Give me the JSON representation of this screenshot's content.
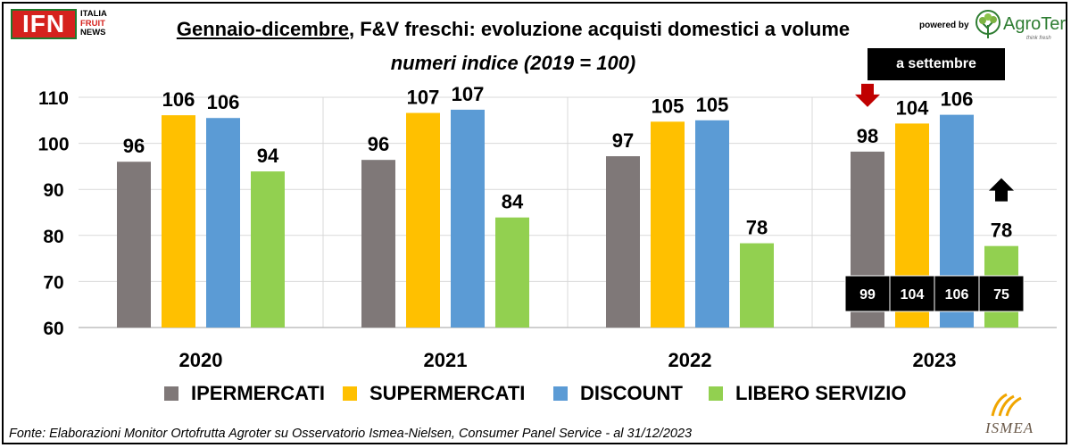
{
  "header": {
    "title_underlined": "Gennaio-dicembre",
    "title_rest": ", F&V freschi: evoluzione acquisti domestici a volume",
    "subtitle": "numeri indice (2019 = 100)",
    "badge": "a settembre"
  },
  "logos": {
    "ifn_mark": "IFN",
    "ifn_line1": "ITALIA",
    "ifn_line2": "FRUIT",
    "ifn_line3": "NEWS",
    "powered_by": "powered by",
    "agroter_name": "AgroTer",
    "agroter_tagline": "think fresh",
    "ismea_name": "ISMEA"
  },
  "footer": {
    "source": "Fonte: Elaborazioni Monitor Ortofrutta Agroter su Osservatorio Ismea-Nielsen, Consumer Panel Service - al 31/12/2023"
  },
  "colors": {
    "ipermercati": "#7f7878",
    "supermercati": "#ffc000",
    "discount": "#5b9bd5",
    "libero_servizio": "#92d050",
    "arrow_down": "#c00000",
    "arrow_up": "#000000"
  },
  "chart_data": {
    "type": "bar",
    "categories": [
      "2020",
      "2021",
      "2022",
      "2023"
    ],
    "series": [
      {
        "name": "IPERMERCATI",
        "values": [
          96,
          96.4,
          97.2,
          98.2
        ],
        "labels": [
          "96",
          "96",
          "97",
          "98"
        ]
      },
      {
        "name": "SUPERMERCATI",
        "values": [
          106.1,
          106.6,
          104.7,
          104.3
        ],
        "labels": [
          "106",
          "107",
          "105",
          "104"
        ]
      },
      {
        "name": "DISCOUNT",
        "values": [
          105.5,
          107.3,
          105,
          106.2
        ],
        "labels": [
          "106",
          "107",
          "105",
          "106"
        ]
      },
      {
        "name": "LIBERO SERVIZIO",
        "values": [
          93.9,
          83.9,
          78.3,
          77.7
        ],
        "labels": [
          "94",
          "84",
          "78",
          "78"
        ]
      }
    ],
    "september_2023": {
      "labels": [
        "99",
        "104",
        "106",
        "75"
      ]
    },
    "ylim": [
      60,
      110
    ],
    "yticks": [
      "60",
      "70",
      "80",
      "90",
      "100",
      "110"
    ],
    "grid": true,
    "legend": "bottom",
    "annotations": [
      {
        "category": "2023",
        "series": "IPERMERCATI",
        "marker": "arrow-down"
      },
      {
        "category": "2023",
        "series": "LIBERO SERVIZIO",
        "marker": "arrow-up"
      }
    ]
  }
}
